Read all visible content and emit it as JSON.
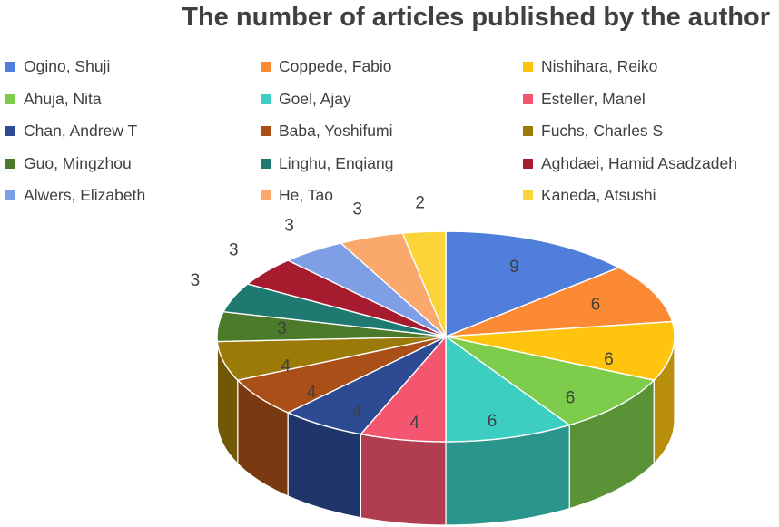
{
  "chart_data": {
    "type": "pie",
    "title": "The number of articles published by the author",
    "legend_position": "top",
    "series": [
      {
        "name": "Ogino, Shuji",
        "value": 9,
        "color": "#4F7FDA"
      },
      {
        "name": "Coppede, Fabio",
        "value": 6,
        "color": "#FC8A35"
      },
      {
        "name": "Nishihara, Reiko",
        "value": 6,
        "color": "#FFC50E"
      },
      {
        "name": "Ahuja, Nita",
        "value": 6,
        "color": "#7DCC4C"
      },
      {
        "name": "Goel, Ajay",
        "value": 6,
        "color": "#3CCFC1"
      },
      {
        "name": "Esteller, Manel",
        "value": 4,
        "color": "#F5566F"
      },
      {
        "name": "Chan, Andrew T",
        "value": 4,
        "color": "#2C4B93"
      },
      {
        "name": "Baba, Yoshifumi",
        "value": 4,
        "color": "#A94F17"
      },
      {
        "name": "Fuchs, Charles S",
        "value": 4,
        "color": "#9B7A08"
      },
      {
        "name": "Guo, Mingzhou",
        "value": 3,
        "color": "#4A7A2A"
      },
      {
        "name": "Linghu, Enqiang",
        "value": 3,
        "color": "#1E7A70"
      },
      {
        "name": "Aghdaei, Hamid Asadzadeh",
        "value": 3,
        "color": "#A61C2E"
      },
      {
        "name": "Alwers, Elizabeth",
        "value": 3,
        "color": "#7E9FE6"
      },
      {
        "name": "He, Tao",
        "value": 3,
        "color": "#FBA86D"
      },
      {
        "name": "Kaneda, Atsushi",
        "value": 2,
        "color": "#FBD43A"
      }
    ]
  }
}
